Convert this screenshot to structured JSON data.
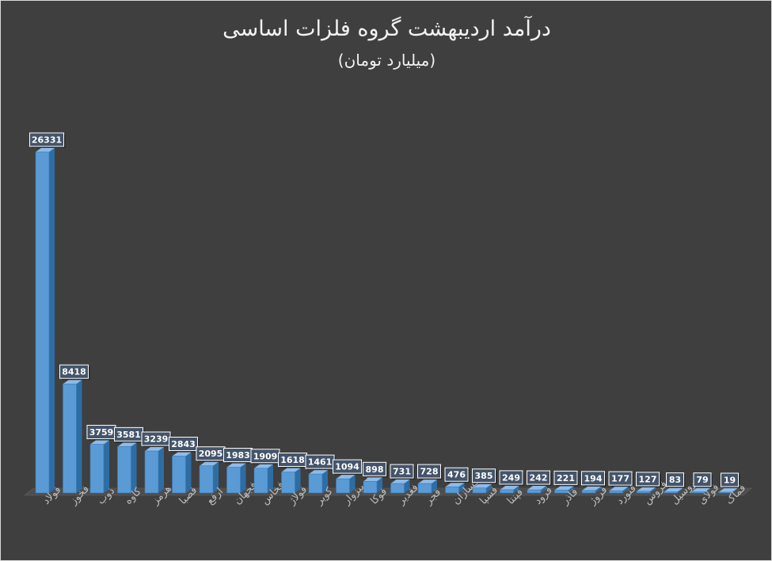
{
  "title": "درآمد اردیبهشت گروه فلزات اساسی",
  "subtitle": "(میلیارد تومان)",
  "colors": {
    "background": "#3f3f3f",
    "bar_front": "#5b9bd5",
    "bar_side": "#2e6da4",
    "bar_top": "#8fbbe8",
    "label_fill": "#44546a",
    "label_border": "#ffffff",
    "text": "#f2f2f2",
    "category_text": "#bfbfbf"
  },
  "chart_data": {
    "type": "bar",
    "categories": [
      "فولاد",
      "فخوز",
      "ذوب",
      "کاوه",
      "هرمز",
      "فصبا",
      "ارفع",
      "فجهان",
      "فخاس",
      "فولاژ",
      "کویر",
      "فسبزوار",
      "فوکا",
      "فغدیر",
      "فجر",
      "فسازان",
      "فسپا",
      "فپنتا",
      "فرود",
      "فاذر",
      "فروژ",
      "فنورد",
      "فروس",
      "فروسیل",
      "فولای",
      "فماک"
    ],
    "values": [
      26331,
      8418,
      3759,
      3581,
      3239,
      2843,
      2095,
      1983,
      1909,
      1618,
      1461,
      1094,
      898,
      731,
      728,
      476,
      385,
      249,
      242,
      221,
      194,
      177,
      127,
      83,
      79,
      19
    ],
    "data_labels": [
      "26331",
      "8418",
      "3759",
      "3581",
      "3239",
      "2843",
      "2095",
      "1983",
      "1909",
      "1618",
      "1461",
      "1094",
      "898",
      "731",
      "728",
      "476",
      "385",
      "249",
      "242",
      "221",
      "194",
      "177",
      "127",
      "83",
      "79",
      "19"
    ],
    "title": "درآمد اردیبهشت گروه فلزات اساسی",
    "subtitle": "(میلیارد تومان)",
    "xlabel": "",
    "ylabel": "",
    "ylim": [
      0,
      26331
    ],
    "grid": false,
    "legend": "none",
    "style": "3d-column"
  }
}
